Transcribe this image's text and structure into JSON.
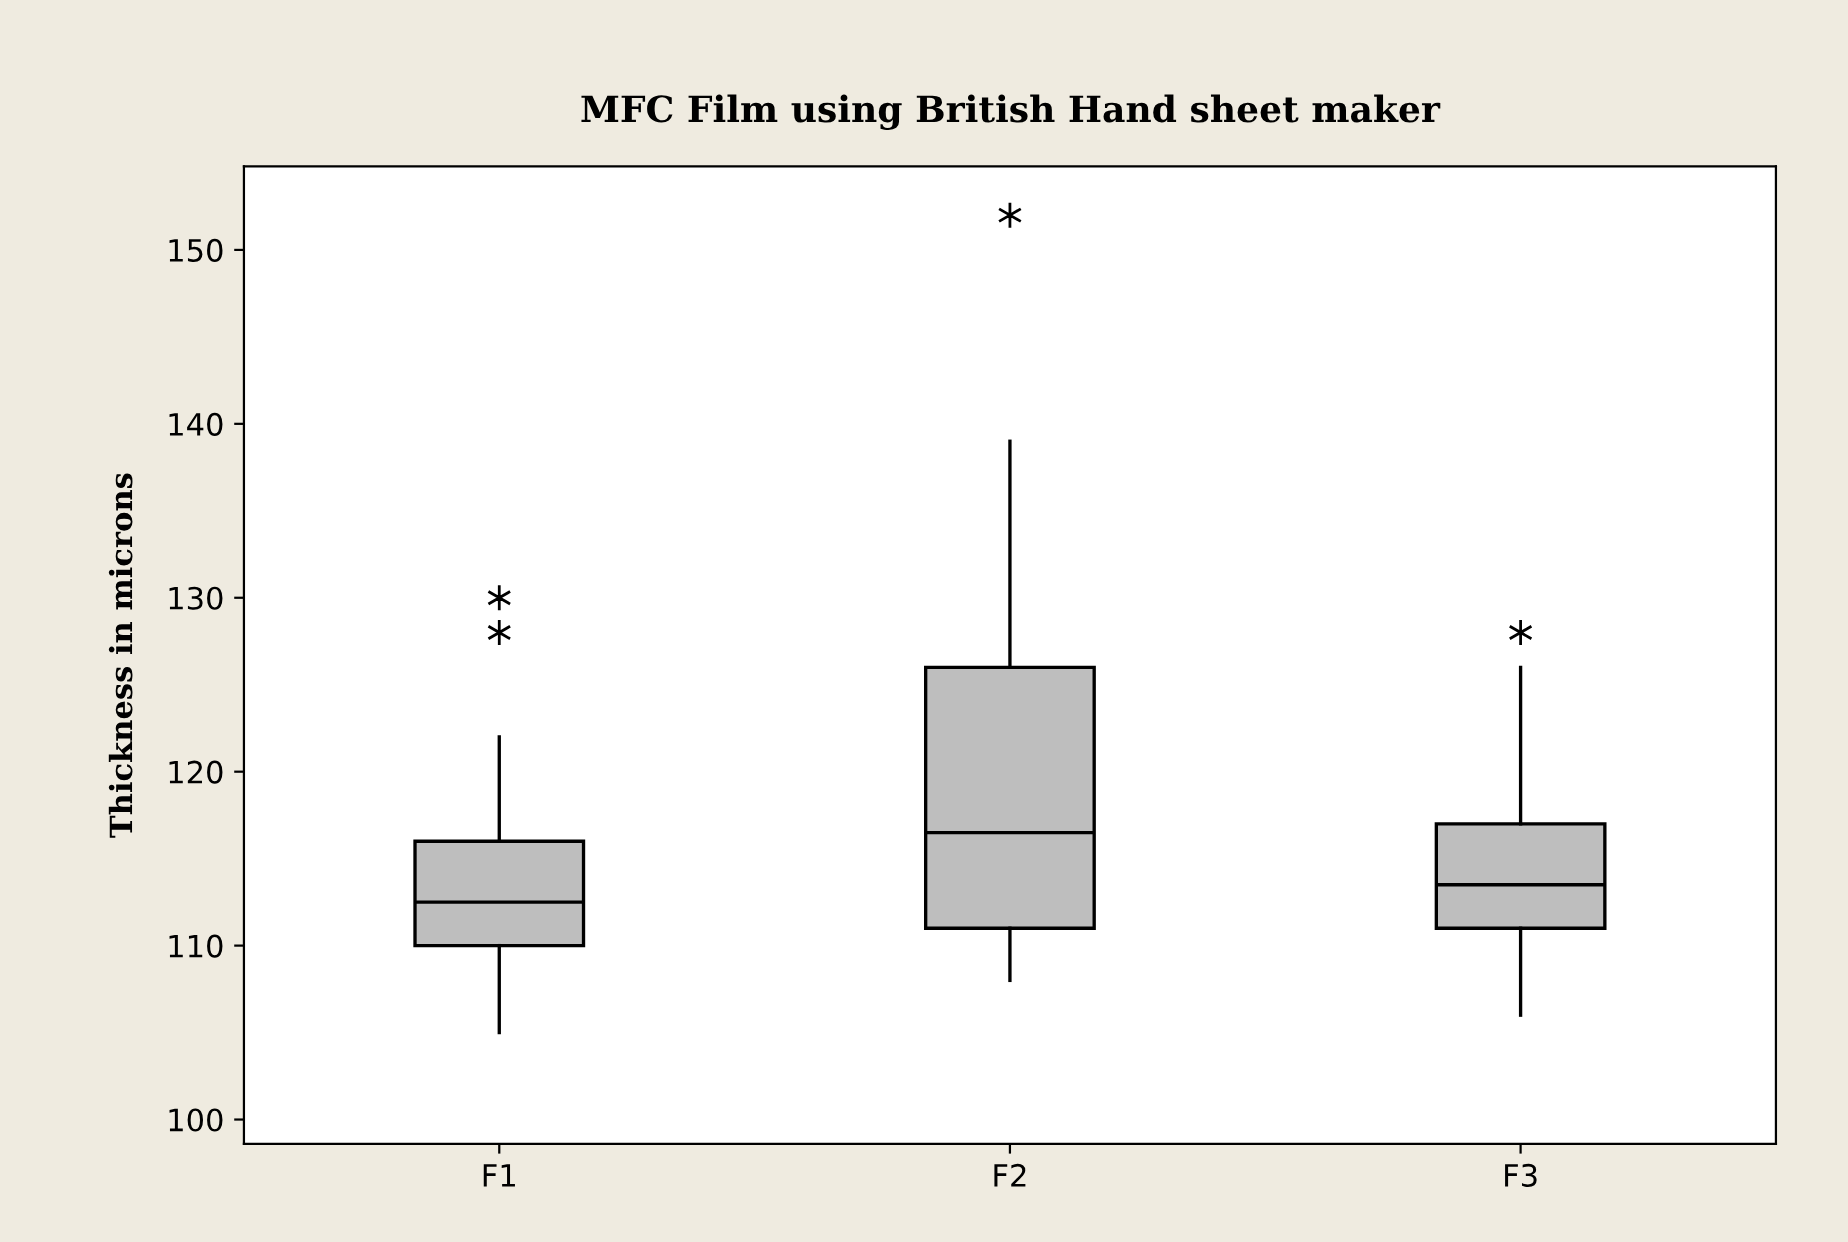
{
  "chart_data": {
    "type": "box",
    "title": "MFC Film using British Hand sheet maker",
    "ylabel": "Thickness in microns",
    "categories": [
      "F1",
      "F2",
      "F3"
    ],
    "boxes": [
      {
        "low": 105,
        "q1": 110,
        "median": 112.5,
        "q3": 116,
        "high": 122,
        "outliers": [
          128,
          130
        ]
      },
      {
        "low": 108,
        "q1": 111,
        "median": 116.5,
        "q3": 126,
        "high": 139,
        "outliers": [
          152
        ]
      },
      {
        "low": 106,
        "q1": 111,
        "median": 113.5,
        "q3": 117,
        "high": 126,
        "outliers": [
          128
        ]
      }
    ],
    "color": "#bebebe",
    "ylim": [
      98.6,
      154.8
    ],
    "yticks": [
      100,
      110,
      120,
      130,
      140,
      150
    ],
    "grid": false,
    "marker": "star"
  }
}
